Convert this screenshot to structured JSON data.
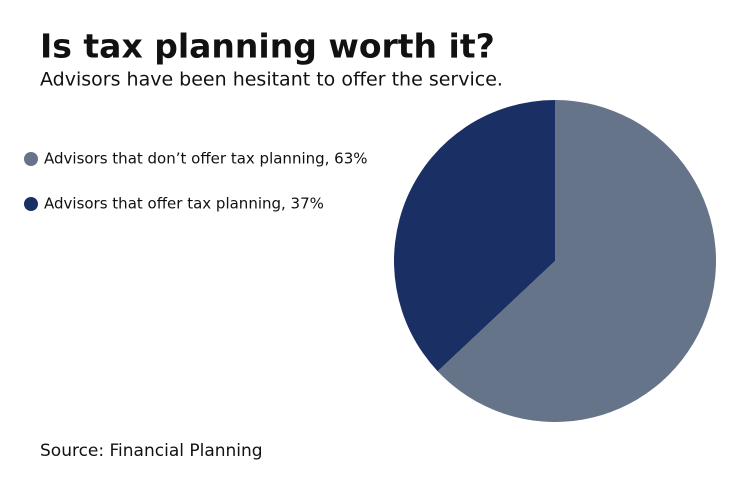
{
  "chart_data": {
    "type": "pie",
    "title": "Is tax planning worth it?",
    "subtitle": "Advisors have been hesitant to offer the service.",
    "categories": [
      "Advisors that don’t offer tax planning, 63%",
      "Advisors that offer tax planning, 37%"
    ],
    "values": [
      63,
      37
    ],
    "colors": [
      "#667489",
      "#1a2f63"
    ],
    "source": "Source: Financial Planning",
    "legend": "left"
  }
}
